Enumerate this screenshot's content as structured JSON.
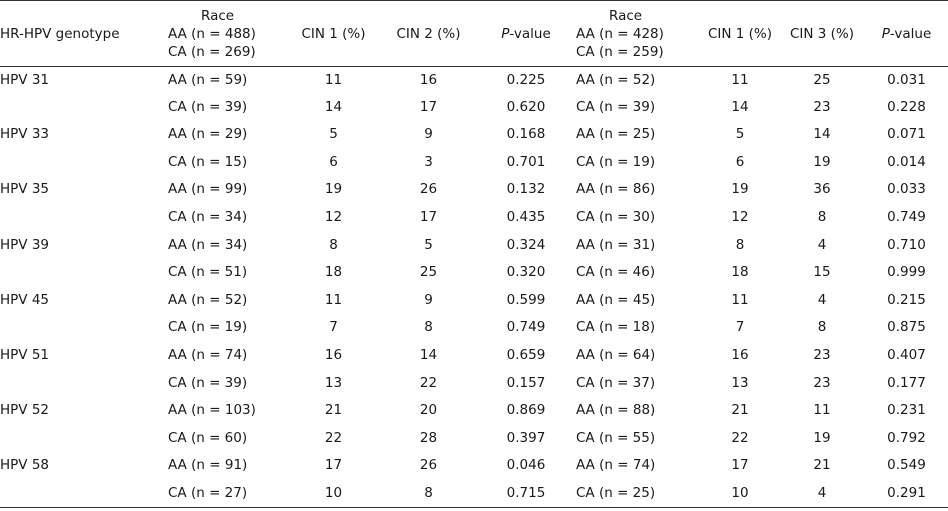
{
  "headers": {
    "genotype": "HR-HPV genotype",
    "left_race": {
      "title": "Race",
      "line1": "AA (n = 488)",
      "line2": "CA (n = 269)"
    },
    "left_cin_a": "CIN 1 (%)",
    "left_cin_b": "CIN 2 (%)",
    "p_italic": "P",
    "p_rest": "-value",
    "right_race": {
      "title": "Race",
      "line1": "AA (n = 428)",
      "line2": "CA (n = 259)"
    },
    "right_cin_a": "CIN 1 (%)",
    "right_cin_b": "CIN 3 (%)"
  },
  "rows": [
    [
      "HPV 31",
      "AA (n = 59)",
      "11",
      "16",
      "0.225",
      "AA (n = 52)",
      "11",
      "25",
      "0.031"
    ],
    [
      "",
      "CA  (n = 39)",
      "14",
      "17",
      "0.620",
      "CA (n = 39)",
      "14",
      "23",
      "0.228"
    ],
    [
      "HPV 33",
      "AA (n = 29)",
      "5",
      "9",
      "0.168",
      "AA (n = 25)",
      "5",
      "14",
      "0.071"
    ],
    [
      "",
      "CA (n = 15)",
      "6",
      "3",
      "0.701",
      "CA (n = 19)",
      "6",
      "19",
      "0.014"
    ],
    [
      "HPV 35",
      "AA (n = 99)",
      "19",
      "26",
      "0.132",
      "AA (n = 86)",
      "19",
      "36",
      "0.033"
    ],
    [
      "",
      "CA (n = 34)",
      "12",
      "17",
      "0.435",
      "CA (n = 30)",
      "12",
      "8",
      "0.749"
    ],
    [
      "HPV 39",
      "AA (n = 34)",
      "8",
      "5",
      "0.324",
      "AA (n = 31)",
      "8",
      "4",
      "0.710"
    ],
    [
      "",
      "CA (n = 51)",
      "18",
      "25",
      "0.320",
      "CA (n = 46)",
      "18",
      "15",
      "0.999"
    ],
    [
      "HPV 45",
      "AA (n = 52)",
      "11",
      "9",
      "0.599",
      "AA (n = 45)",
      "11",
      "4",
      "0.215"
    ],
    [
      "",
      "CA (n = 19)",
      "7",
      "8",
      "0.749",
      "CA (n = 18)",
      "7",
      "8",
      "0.875"
    ],
    [
      "HPV 51",
      "AA (n = 74)",
      "16",
      "14",
      "0.659",
      "AA (n = 64)",
      "16",
      "23",
      "0.407"
    ],
    [
      "",
      "CA (n = 39)",
      "13",
      "22",
      "0.157",
      "CA (n = 37)",
      "13",
      "23",
      "0.177"
    ],
    [
      "HPV 52",
      "AA (n = 103)",
      "21",
      "20",
      "0.869",
      "AA (n = 88)",
      "21",
      "11",
      "0.231"
    ],
    [
      "",
      "CA (n = 60)",
      "22",
      "28",
      "0.397",
      "CA (n = 55)",
      "22",
      "19",
      "0.792"
    ],
    [
      "HPV 58",
      "AA (n = 91)",
      "17",
      "26",
      "0.046",
      "AA (n = 74)",
      "17",
      "21",
      "0.549"
    ],
    [
      "",
      "CA (n = 27)",
      "10",
      "8",
      "0.715",
      "CA (n = 25)",
      "10",
      "4",
      "0.291"
    ]
  ]
}
